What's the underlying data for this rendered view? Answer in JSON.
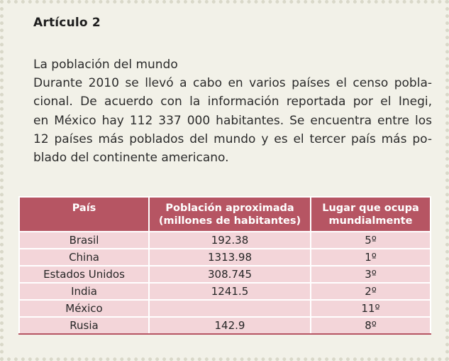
{
  "article": {
    "title": "Artículo 2",
    "heading": "La población del mundo",
    "lines": [
      "Durante 2010 se llevó a cabo en varios países el censo pobla-",
      "cional. De acuerdo con la información reportada por el Inegi,",
      "en México hay 112 337 000 habitantes. Se encuentra entre los",
      "12 países más poblados del mundo y es el tercer país más po-",
      "blado del continente americano."
    ]
  },
  "table": {
    "headers": {
      "country": "País",
      "population_1": "Población aproximada",
      "population_2": "(millones de habitantes)",
      "rank_1": "Lugar que ocupa",
      "rank_2": "mundialmente"
    },
    "rows": [
      {
        "country": "Brasil",
        "population": "192.38",
        "rank": "5º"
      },
      {
        "country": "China",
        "population": "1313.98",
        "rank": "1º"
      },
      {
        "country": "Estados Unidos",
        "population": "308.745",
        "rank": "3º"
      },
      {
        "country": "India",
        "population": "1241.5",
        "rank": "2º"
      },
      {
        "country": "México",
        "population": "",
        "rank": "11º"
      },
      {
        "country": "Rusia",
        "population": "142.9",
        "rank": "8º"
      }
    ]
  },
  "colors": {
    "header_bg": "#b65563",
    "row_bg": "#f3d5d9",
    "card_bg": "#f2f1e8"
  }
}
